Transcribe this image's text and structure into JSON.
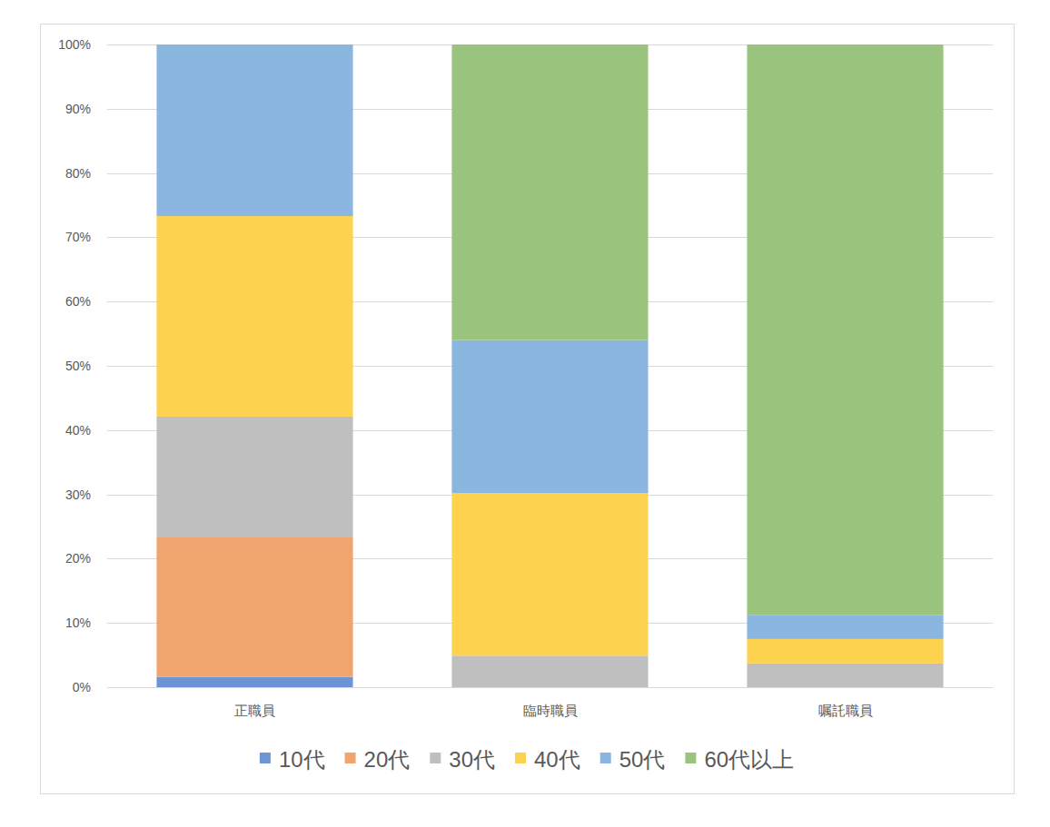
{
  "chart_data": {
    "type": "bar",
    "stacked": true,
    "grid": true,
    "legend": "bottom",
    "categories": [
      "正職員",
      "臨時職員",
      "嘱託職員"
    ],
    "series": [
      {
        "name": "10代",
        "color": "#6d94d5",
        "values": [
          1.6,
          0,
          0
        ]
      },
      {
        "name": "20代",
        "color": "#f0a46e",
        "values": [
          21.7,
          0,
          0
        ]
      },
      {
        "name": "30代",
        "color": "#bfbfbf",
        "values": [
          18.8,
          4.9,
          3.7
        ]
      },
      {
        "name": "40代",
        "color": "#fdd24f",
        "values": [
          31.2,
          25.3,
          3.8
        ]
      },
      {
        "name": "50代",
        "color": "#8ab6e0",
        "values": [
          26.7,
          23.8,
          3.7
        ]
      },
      {
        "name": "60代以上",
        "color": "#9ac47d",
        "values": [
          0,
          46.0,
          88.8
        ]
      }
    ],
    "ylim": [
      0,
      100
    ],
    "yticks": [
      {
        "value": 0,
        "label": "0%"
      },
      {
        "value": 10,
        "label": "10%"
      },
      {
        "value": 20,
        "label": "20%"
      },
      {
        "value": 30,
        "label": "30%"
      },
      {
        "value": 40,
        "label": "40%"
      },
      {
        "value": 50,
        "label": "50%"
      },
      {
        "value": 60,
        "label": "60%"
      },
      {
        "value": 70,
        "label": "70%"
      },
      {
        "value": 80,
        "label": "80%"
      },
      {
        "value": 90,
        "label": "90%"
      },
      {
        "value": 100,
        "label": "100%"
      }
    ]
  }
}
